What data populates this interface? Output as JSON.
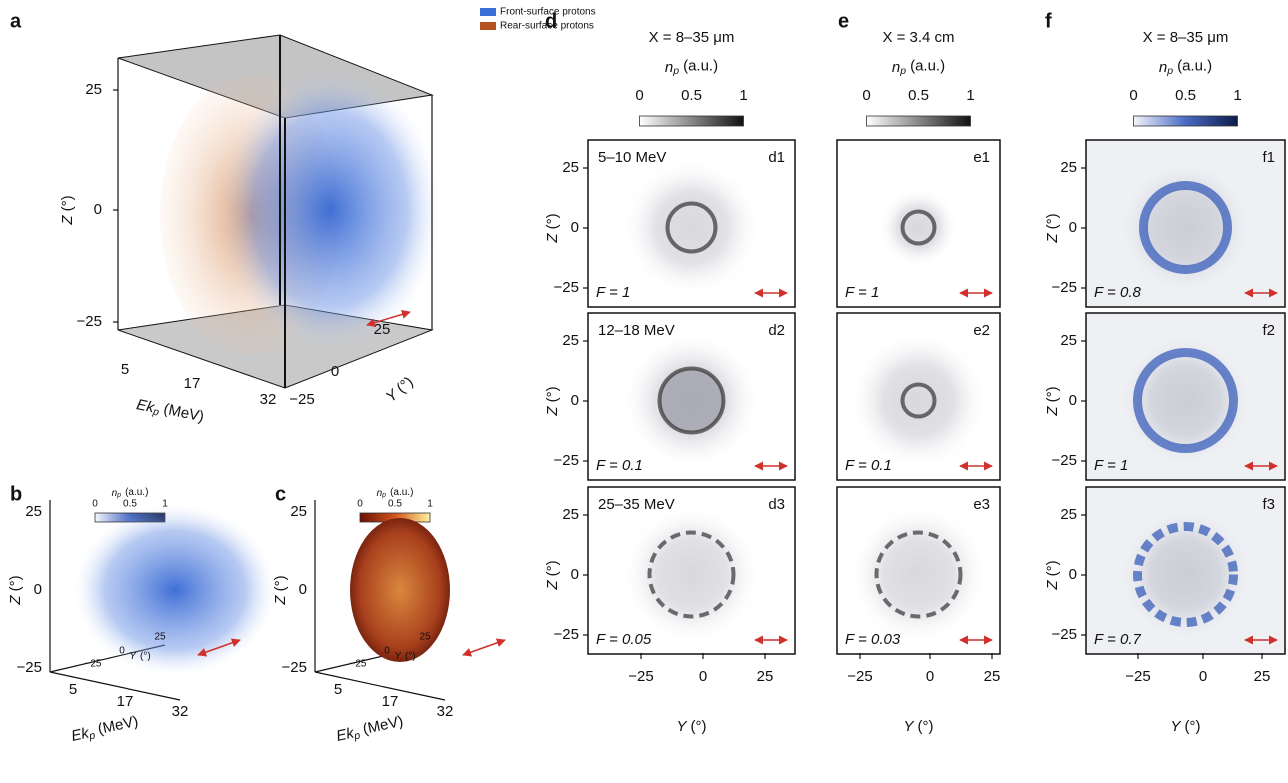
{
  "panels": {
    "a": {
      "label": "a",
      "legend": [
        "Front-surface protons",
        "Rear-surface protons"
      ],
      "z_label": {
        "var": "Z",
        "unit": "(°)"
      },
      "z_ticks": [
        "25",
        "0",
        "−25"
      ],
      "ek_label": {
        "var": "Ek",
        "sub": "p",
        "unit": "(MeV)"
      },
      "ek_ticks": [
        "5",
        "17",
        "32"
      ],
      "y_label": {
        "var": "Y",
        "unit": "(°)"
      },
      "y_ticks": [
        "−25",
        "0",
        "25"
      ]
    },
    "b": {
      "label": "b",
      "colorbar": {
        "var": "n",
        "sub": "p",
        "unit": "(a.u.)",
        "ticks": [
          "0",
          "0.5",
          "1"
        ]
      },
      "z_label": {
        "var": "Z",
        "unit": "(°)"
      },
      "z_ticks": [
        "25",
        "0",
        "−25"
      ],
      "ek_label": {
        "var": "Ek",
        "sub": "p",
        "unit": "(MeV)"
      },
      "ek_ticks": [
        "5",
        "17",
        "32"
      ],
      "y_label": {
        "var": "Y",
        "unit": "(°)"
      },
      "y_ticks": [
        "−25",
        "0",
        "25"
      ]
    },
    "c": {
      "label": "c",
      "colorbar": {
        "var": "n",
        "sub": "p",
        "unit": "(a.u.)",
        "ticks": [
          "0",
          "0.5",
          "1"
        ]
      },
      "z_label": {
        "var": "Z",
        "unit": "(°)"
      },
      "z_ticks": [
        "25",
        "0",
        "−25"
      ],
      "ek_label": {
        "var": "Ek",
        "sub": "p",
        "unit": "(MeV)"
      },
      "ek_ticks": [
        "5",
        "17",
        "32"
      ],
      "y_label": {
        "var": "Y",
        "unit": "(°)"
      },
      "y_ticks": [
        "−25",
        "0",
        "25"
      ]
    },
    "d": {
      "label": "d",
      "title": "X = 8–35 μm",
      "colorbar": {
        "var": "n",
        "sub": "p",
        "unit": "(a.u.)",
        "ticks": [
          "0",
          "0.5",
          "1"
        ]
      },
      "subpanels": [
        {
          "id": "d1",
          "energy": "5–10 MeV",
          "f": "F = 1"
        },
        {
          "id": "d2",
          "energy": "12–18 MeV",
          "f": "F = 0.1"
        },
        {
          "id": "d3",
          "energy": "25–35 MeV",
          "f": "F = 0.05"
        }
      ],
      "z_label": {
        "var": "Z",
        "unit": "(°)"
      },
      "z_ticks": [
        "25",
        "0",
        "−25"
      ],
      "y_label": {
        "var": "Y",
        "unit": "(°)"
      },
      "y_ticks": [
        "−25",
        "0",
        "25"
      ]
    },
    "e": {
      "label": "e",
      "title": "X = 3.4 cm",
      "colorbar": {
        "var": "n",
        "sub": "p",
        "unit": "(a.u.)",
        "ticks": [
          "0",
          "0.5",
          "1"
        ]
      },
      "subpanels": [
        {
          "id": "e1",
          "f": "F = 1"
        },
        {
          "id": "e2",
          "f": "F = 0.1"
        },
        {
          "id": "e3",
          "f": "F = 0.03"
        }
      ],
      "y_label": {
        "var": "Y",
        "unit": "(°)"
      },
      "y_ticks": [
        "−25",
        "0",
        "25"
      ]
    },
    "f": {
      "label": "f",
      "title": "X = 8–35 μm",
      "colorbar": {
        "var": "n",
        "sub": "p",
        "unit": "(a.u.)",
        "ticks": [
          "0",
          "0.5",
          "1"
        ]
      },
      "subpanels": [
        {
          "id": "f1",
          "f": "F = 0.8"
        },
        {
          "id": "f2",
          "f": "F = 1"
        },
        {
          "id": "f3",
          "f": "F = 0.7"
        }
      ],
      "z_label": {
        "var": "Z",
        "unit": "(°)"
      },
      "z_ticks": [
        "25",
        "0",
        "−25"
      ],
      "y_label": {
        "var": "Y",
        "unit": "(°)"
      },
      "y_ticks": [
        "−25",
        "0",
        "25"
      ]
    }
  }
}
